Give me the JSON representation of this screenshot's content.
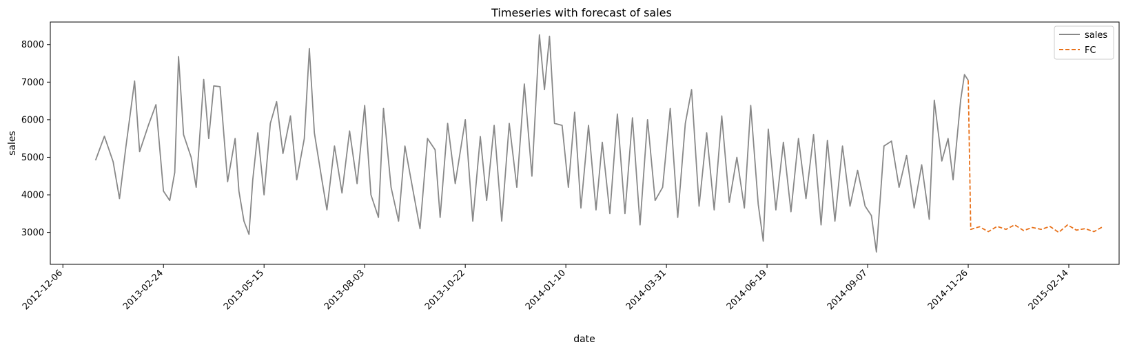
{
  "chart_data": {
    "type": "line",
    "title": "Timeseries with forecast of sales",
    "xlabel": "date",
    "ylabel": "sales",
    "x_range": [
      "2012-11-26",
      "2015-03-26"
    ],
    "ylim": [
      2150,
      8600
    ],
    "x_ticks": [
      "2012-12-06",
      "2013-02-24",
      "2013-05-15",
      "2013-08-03",
      "2013-10-22",
      "2014-01-10",
      "2014-03-31",
      "2014-06-19",
      "2014-09-07",
      "2014-11-26",
      "2015-02-14"
    ],
    "y_ticks": [
      3000,
      4000,
      5000,
      6000,
      7000,
      8000
    ],
    "legend_position": "top-right",
    "series": [
      {
        "name": "sales",
        "color": "#888888",
        "style": "solid",
        "start": "2013-01-01",
        "points": [
          [
            "2013-01-01",
            4920
          ],
          [
            "2013-01-08",
            5560
          ],
          [
            "2013-01-15",
            4880
          ],
          [
            "2013-01-20",
            3900
          ],
          [
            "2013-01-25",
            5250
          ],
          [
            "2013-02-01",
            7030
          ],
          [
            "2013-02-05",
            5150
          ],
          [
            "2013-02-12",
            5850
          ],
          [
            "2013-02-18",
            6400
          ],
          [
            "2013-02-24",
            4100
          ],
          [
            "2013-03-01",
            3850
          ],
          [
            "2013-03-05",
            4600
          ],
          [
            "2013-03-08",
            7680
          ],
          [
            "2013-03-12",
            5600
          ],
          [
            "2013-03-18",
            5000
          ],
          [
            "2013-03-22",
            4200
          ],
          [
            "2013-03-28",
            7070
          ],
          [
            "2013-04-01",
            5500
          ],
          [
            "2013-04-05",
            6900
          ],
          [
            "2013-04-10",
            6880
          ],
          [
            "2013-04-16",
            4350
          ],
          [
            "2013-04-22",
            5500
          ],
          [
            "2013-04-25",
            4100
          ],
          [
            "2013-04-29",
            3300
          ],
          [
            "2013-05-03",
            2950
          ],
          [
            "2013-05-06",
            4400
          ],
          [
            "2013-05-10",
            5650
          ],
          [
            "2013-05-15",
            4000
          ],
          [
            "2013-05-20",
            5900
          ],
          [
            "2013-05-25",
            6480
          ],
          [
            "2013-05-30",
            5100
          ],
          [
            "2013-06-05",
            6100
          ],
          [
            "2013-06-10",
            4400
          ],
          [
            "2013-06-16",
            5500
          ],
          [
            "2013-06-20",
            7890
          ],
          [
            "2013-06-24",
            5650
          ],
          [
            "2013-06-30",
            4400
          ],
          [
            "2013-07-04",
            3600
          ],
          [
            "2013-07-10",
            5300
          ],
          [
            "2013-07-16",
            4050
          ],
          [
            "2013-07-22",
            5700
          ],
          [
            "2013-07-28",
            4300
          ],
          [
            "2013-08-03",
            6380
          ],
          [
            "2013-08-08",
            4000
          ],
          [
            "2013-08-14",
            3400
          ],
          [
            "2013-08-18",
            6300
          ],
          [
            "2013-08-24",
            4200
          ],
          [
            "2013-08-30",
            3300
          ],
          [
            "2013-09-04",
            5300
          ],
          [
            "2013-09-10",
            4200
          ],
          [
            "2013-09-16",
            3100
          ],
          [
            "2013-09-22",
            5500
          ],
          [
            "2013-09-28",
            5200
          ],
          [
            "2013-10-02",
            3400
          ],
          [
            "2013-10-08",
            5900
          ],
          [
            "2013-10-14",
            4300
          ],
          [
            "2013-10-22",
            6000
          ],
          [
            "2013-10-28",
            3300
          ],
          [
            "2013-11-03",
            5550
          ],
          [
            "2013-11-08",
            3850
          ],
          [
            "2013-11-14",
            5850
          ],
          [
            "2013-11-20",
            3300
          ],
          [
            "2013-11-26",
            5900
          ],
          [
            "2013-12-02",
            4200
          ],
          [
            "2013-12-08",
            6950
          ],
          [
            "2013-12-14",
            4500
          ],
          [
            "2013-12-20",
            8260
          ],
          [
            "2013-12-24",
            6800
          ],
          [
            "2013-12-28",
            8220
          ],
          [
            "2014-01-01",
            5900
          ],
          [
            "2014-01-07",
            5850
          ],
          [
            "2014-01-12",
            4200
          ],
          [
            "2014-01-17",
            6200
          ],
          [
            "2014-01-22",
            3650
          ],
          [
            "2014-01-28",
            5850
          ],
          [
            "2014-02-03",
            3600
          ],
          [
            "2014-02-08",
            5400
          ],
          [
            "2014-02-14",
            3500
          ],
          [
            "2014-02-20",
            6150
          ],
          [
            "2014-02-26",
            3500
          ],
          [
            "2014-03-04",
            6050
          ],
          [
            "2014-03-10",
            3200
          ],
          [
            "2014-03-16",
            6000
          ],
          [
            "2014-03-22",
            3850
          ],
          [
            "2014-03-28",
            4200
          ],
          [
            "2014-04-03",
            6300
          ],
          [
            "2014-04-09",
            3400
          ],
          [
            "2014-04-15",
            5900
          ],
          [
            "2014-04-20",
            6800
          ],
          [
            "2014-04-26",
            3700
          ],
          [
            "2014-05-02",
            5650
          ],
          [
            "2014-05-08",
            3600
          ],
          [
            "2014-05-14",
            6100
          ],
          [
            "2014-05-20",
            3800
          ],
          [
            "2014-05-26",
            5000
          ],
          [
            "2014-06-01",
            3650
          ],
          [
            "2014-06-06",
            6380
          ],
          [
            "2014-06-12",
            3750
          ],
          [
            "2014-06-16",
            2770
          ],
          [
            "2014-06-20",
            5750
          ],
          [
            "2014-06-26",
            3600
          ],
          [
            "2014-07-02",
            5400
          ],
          [
            "2014-07-08",
            3550
          ],
          [
            "2014-07-14",
            5500
          ],
          [
            "2014-07-20",
            3900
          ],
          [
            "2014-07-26",
            5600
          ],
          [
            "2014-08-01",
            3200
          ],
          [
            "2014-08-06",
            5450
          ],
          [
            "2014-08-12",
            3300
          ],
          [
            "2014-08-18",
            5300
          ],
          [
            "2014-08-24",
            3700
          ],
          [
            "2014-08-30",
            4650
          ],
          [
            "2014-09-05",
            3700
          ],
          [
            "2014-09-10",
            3450
          ],
          [
            "2014-09-14",
            2480
          ],
          [
            "2014-09-20",
            5300
          ],
          [
            "2014-09-26",
            5430
          ],
          [
            "2014-10-02",
            4200
          ],
          [
            "2014-10-08",
            5050
          ],
          [
            "2014-10-14",
            3650
          ],
          [
            "2014-10-20",
            4800
          ],
          [
            "2014-10-26",
            3350
          ],
          [
            "2014-10-30",
            6520
          ],
          [
            "2014-11-05",
            4900
          ],
          [
            "2014-11-10",
            5500
          ],
          [
            "2014-11-14",
            4400
          ],
          [
            "2014-11-20",
            6530
          ],
          [
            "2014-11-23",
            7200
          ],
          [
            "2014-11-26",
            7050
          ]
        ]
      },
      {
        "name": "FC",
        "color": "#e8711a",
        "style": "dashed",
        "points": [
          [
            "2014-11-26",
            7050
          ],
          [
            "2014-11-28",
            3080
          ],
          [
            "2014-12-05",
            3150
          ],
          [
            "2014-12-12",
            3020
          ],
          [
            "2014-12-19",
            3160
          ],
          [
            "2014-12-26",
            3080
          ],
          [
            "2015-01-02",
            3200
          ],
          [
            "2015-01-09",
            3050
          ],
          [
            "2015-01-16",
            3130
          ],
          [
            "2015-01-23",
            3080
          ],
          [
            "2015-01-30",
            3160
          ],
          [
            "2015-02-06",
            3000
          ],
          [
            "2015-02-13",
            3200
          ],
          [
            "2015-02-20",
            3060
          ],
          [
            "2015-02-27",
            3100
          ],
          [
            "2015-03-06",
            3020
          ],
          [
            "2015-03-13",
            3150
          ]
        ]
      }
    ]
  }
}
